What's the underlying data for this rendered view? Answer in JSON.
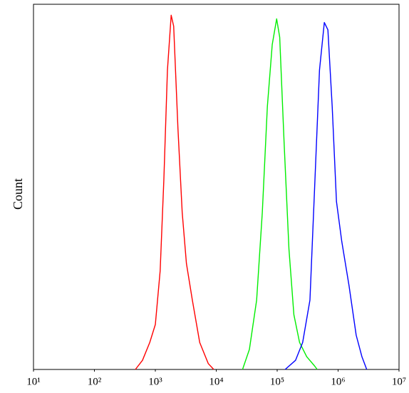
{
  "chart_data": {
    "type": "line",
    "y_label": "Count",
    "xscale": "log",
    "xlim": [
      10,
      10000000
    ],
    "ylim": [
      0,
      100
    ],
    "xticks": [
      {
        "value": 10,
        "label": "10¹"
      },
      {
        "value": 100,
        "label": "10²"
      },
      {
        "value": 1000,
        "label": "10³"
      },
      {
        "value": 10000,
        "label": "10⁴"
      },
      {
        "value": 100000,
        "label": "10⁵"
      },
      {
        "value": 1000000,
        "label": "10⁶"
      },
      {
        "value": 10000000,
        "label": "10⁷"
      }
    ],
    "series": [
      {
        "color": "#ff0000",
        "x": [
          470,
          615,
          810,
          1000,
          1200,
          1380,
          1580,
          1820,
          2000,
          2350,
          2760,
          3240,
          4050,
          5350,
          7400,
          9100
        ],
        "values": [
          0,
          2.5,
          7.4,
          12.3,
          27,
          52,
          82,
          97,
          94,
          66,
          43,
          29,
          19,
          7.4,
          1.6,
          0
        ]
      },
      {
        "color": "#00ee00",
        "x": [
          27000,
          35000,
          46000,
          57000,
          69000,
          83000,
          98000,
          110000,
          130000,
          156000,
          188000,
          233000,
          305000,
          400000,
          455000
        ],
        "values": [
          0,
          5.5,
          19,
          43,
          72,
          89,
          96,
          91,
          62,
          33,
          15,
          7.4,
          3.5,
          1.2,
          0
        ]
      },
      {
        "color": "#0000ff",
        "x": [
          135000,
          200000,
          262000,
          345000,
          417000,
          495000,
          594000,
          680000,
          800000,
          940000,
          1150000,
          1510000,
          1980000,
          2460000,
          2950000
        ],
        "values": [
          0,
          2.5,
          7.4,
          19,
          52,
          82,
          95,
          93,
          72,
          46,
          35,
          23,
          9.4,
          3.5,
          0
        ]
      }
    ]
  }
}
